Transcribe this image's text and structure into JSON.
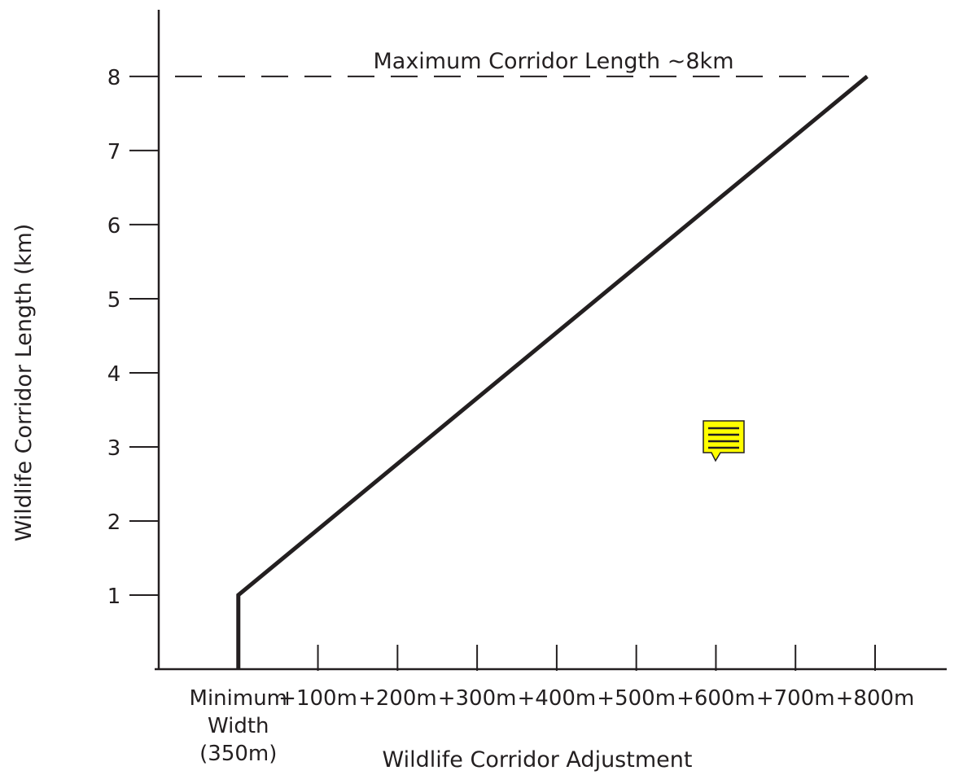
{
  "chart_data": {
    "type": "line",
    "title": "",
    "xlabel": "Wildlife Corridor Adjustment",
    "ylabel": "Wildlife Corridor Length (km)",
    "x_tick_labels": [
      [
        "Minimum",
        "Width",
        "(350m)"
      ],
      "+100m",
      "+200m",
      "+300m",
      "+400m",
      "+500m",
      "+600m",
      "+700m",
      "+800m"
    ],
    "y_tick_labels": [
      "1",
      "2",
      "3",
      "4",
      "5",
      "6",
      "7",
      "8"
    ],
    "xlim": [
      -1,
      8.9
    ],
    "ylim": [
      0,
      8.9
    ],
    "grid": false,
    "series": [
      {
        "x": [
          0,
          0,
          7.9
        ],
        "y": [
          0,
          1,
          8
        ],
        "color": "#231f20"
      }
    ],
    "reference_line": {
      "y": 8,
      "style": "dashed",
      "x_from": -1,
      "x_to": 7.9
    },
    "annotations": [
      {
        "text": "Maximum Corridor Length ~8km"
      }
    ],
    "comment_icon": {
      "icon": "comment-note-icon",
      "fill": "#ffff00",
      "stroke": "#231f20"
    }
  }
}
